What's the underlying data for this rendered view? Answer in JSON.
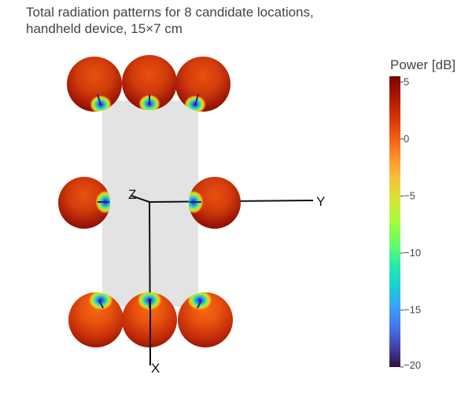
{
  "title_line1": "Total radiation patterns for 8 candidate locations,",
  "title_line2": "handheld device, 15×7 cm",
  "chart_data": {
    "type": "3d-surface",
    "title": "Total radiation patterns for 8 candidate locations, handheld device, 15×7 cm",
    "axes": [
      "X",
      "Y",
      "Z"
    ],
    "device_size_cm": [
      15,
      7
    ],
    "colorbar": {
      "title": "Power [dB]",
      "range": [
        -20,
        5.5
      ],
      "ticks": [
        5,
        0,
        -5,
        -10,
        -15,
        -20
      ],
      "tick_labels": [
        "5",
        "0",
        "−5",
        "−10",
        "−15",
        "−20"
      ],
      "colorscale": "turbo"
    },
    "candidate_locations": [
      {
        "id": 1,
        "group": "top",
        "null_direction": "down"
      },
      {
        "id": 2,
        "group": "top",
        "null_direction": "down"
      },
      {
        "id": 3,
        "group": "top",
        "null_direction": "down"
      },
      {
        "id": 4,
        "group": "middle",
        "null_direction": "right"
      },
      {
        "id": 5,
        "group": "middle",
        "null_direction": "left"
      },
      {
        "id": 6,
        "group": "bottom",
        "null_direction": "up"
      },
      {
        "id": 7,
        "group": "bottom",
        "null_direction": "up"
      },
      {
        "id": 8,
        "group": "bottom",
        "null_direction": "up"
      }
    ]
  }
}
